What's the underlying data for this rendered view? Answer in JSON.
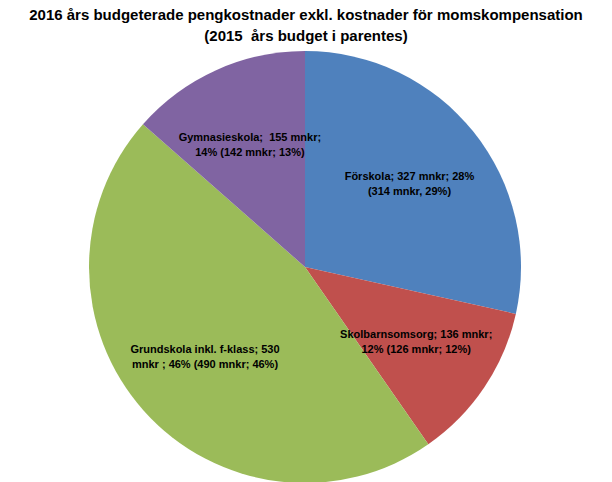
{
  "chart_data": {
    "type": "pie",
    "title": "2016 års budgeterade pengkostnader exkl. kostnader för momskompensation",
    "subtitle": "(2015  års budget i parentes)",
    "categories": [
      "Förskola",
      "Skolbarnsomsorg",
      "Grundskola inkl. f-klass",
      "Gymnasieskola"
    ],
    "values": [
      327,
      136,
      530,
      155
    ],
    "value_labels": [
      "Förskola; 327 mnkr; 28%\n(314 mnkr, 29%)",
      "Skolbarnsomsorg; 136 mnkr;\n12% (126 mnkr; 12%)",
      "Grundskola inkl. f-klass; 530\nmnkr ; 46% (490 mnkr; 46%)",
      "Gymnasieskola;  155 mnkr;\n14% (142 mnkr; 13%)"
    ],
    "colors": [
      "#4f81bd",
      "#c0504d",
      "#9bbb59",
      "#8064a2"
    ],
    "data_labels": true
  }
}
